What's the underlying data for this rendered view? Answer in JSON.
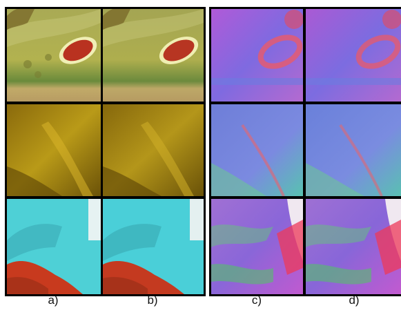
{
  "figure": {
    "captions": [
      "a)",
      "b)",
      "c)",
      "d)"
    ]
  },
  "rows": [
    {
      "name": "red-object-on-green-surface",
      "albedo_base": "#a7a64a",
      "normal_base": "#8c5ad6"
    },
    {
      "name": "golden-rock-surface",
      "albedo_base": "#9a7a10",
      "normal_base": "#6f86d2"
    },
    {
      "name": "cyan-surface-with-red-region",
      "albedo_base": "#4fd2d8",
      "normal_base": "#8e6fd2"
    }
  ]
}
